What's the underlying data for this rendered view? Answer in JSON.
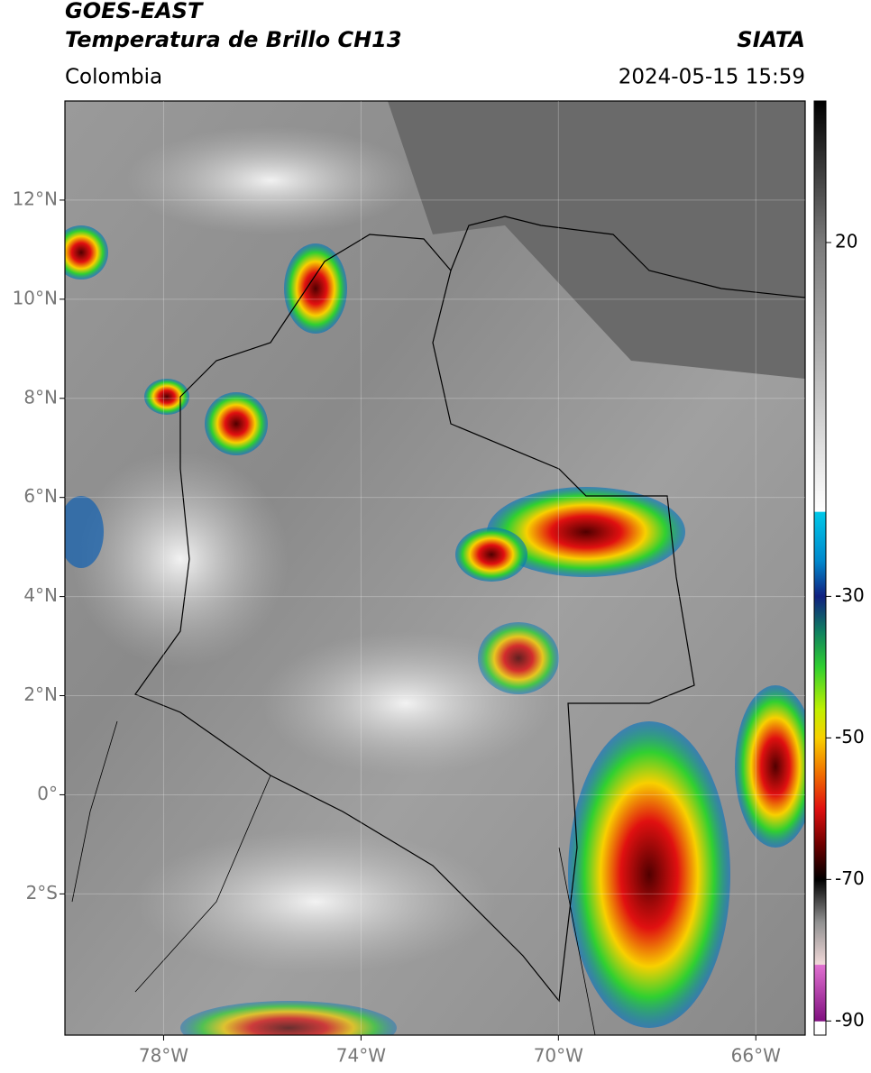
{
  "header": {
    "satellite": "GOES-EAST",
    "product": "Temperatura de Brillo CH13",
    "source": "SIATA",
    "region": "Colombia",
    "datetime": "2024-05-15 15:59"
  },
  "map": {
    "xlim": [
      -80,
      -65
    ],
    "ylim": [
      -4.85,
      14
    ],
    "xticks": [
      {
        "value": -78,
        "label": "78°W"
      },
      {
        "value": -74,
        "label": "74°W"
      },
      {
        "value": -70,
        "label": "70°W"
      },
      {
        "value": -66,
        "label": "66°W"
      }
    ],
    "yticks": [
      {
        "value": 12,
        "label": "12°N"
      },
      {
        "value": 10,
        "label": "10°N"
      },
      {
        "value": 8,
        "label": "8°N"
      },
      {
        "value": 6,
        "label": "6°N"
      },
      {
        "value": 4,
        "label": "4°N"
      },
      {
        "value": 2,
        "label": "2°N"
      },
      {
        "value": 0,
        "label": "0°"
      },
      {
        "value": -2,
        "label": "2°S"
      }
    ],
    "grid": true
  },
  "colorbar": {
    "lim": [
      -92,
      40
    ],
    "ticks": [
      20,
      -30,
      -50,
      -70,
      -90
    ],
    "stops": [
      {
        "value": 40,
        "color": "#000000"
      },
      {
        "value": 20,
        "color": "#7a7a7a"
      },
      {
        "value": -18,
        "color": "#ffffff"
      },
      {
        "value": -18.1,
        "color": "#00c8e8"
      },
      {
        "value": -25,
        "color": "#0088cc"
      },
      {
        "value": -30,
        "color": "#102080"
      },
      {
        "value": -35,
        "color": "#108060"
      },
      {
        "value": -40,
        "color": "#30d030"
      },
      {
        "value": -46,
        "color": "#c0f000"
      },
      {
        "value": -50,
        "color": "#f8d000"
      },
      {
        "value": -55,
        "color": "#f07000"
      },
      {
        "value": -60,
        "color": "#e01010"
      },
      {
        "value": -65,
        "color": "#700000"
      },
      {
        "value": -70,
        "color": "#000000"
      },
      {
        "value": -76,
        "color": "#909090"
      },
      {
        "value": -82,
        "color": "#f0d8d8"
      },
      {
        "value": -82.1,
        "color": "#e070d0"
      },
      {
        "value": -90,
        "color": "#801080"
      },
      {
        "value": -90.1,
        "color": "#ffffff"
      },
      {
        "value": -92,
        "color": "#ffffff"
      }
    ]
  }
}
